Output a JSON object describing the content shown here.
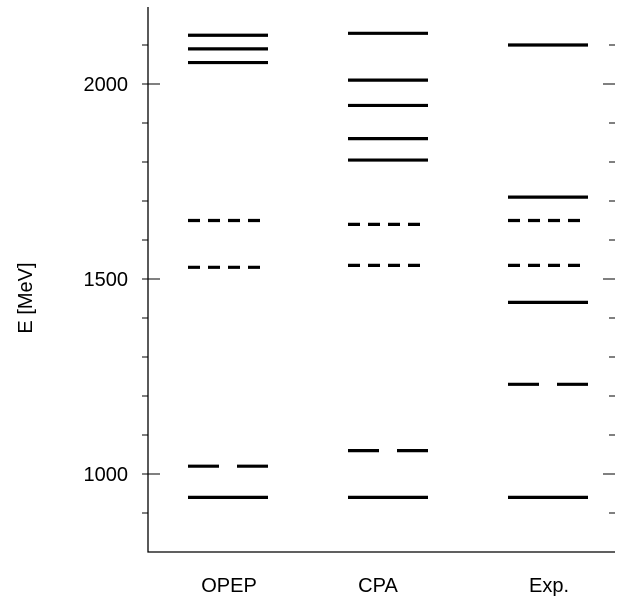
{
  "chart_data": {
    "type": "level-diagram",
    "ylabel": "E   [MeV]",
    "ylim": [
      800,
      2200
    ],
    "y_ticks": [
      1000,
      1500,
      2000
    ],
    "y_tick_labels": [
      "1000",
      "1500",
      "2000"
    ],
    "categories": [
      "OPEP",
      "CPA",
      "Exp."
    ],
    "series": [
      {
        "levels": [
          {
            "value": 2125,
            "style": "solid"
          },
          {
            "value": 2090,
            "style": "solid"
          },
          {
            "value": 2055,
            "style": "solid"
          },
          {
            "value": 1650,
            "style": "dashed"
          },
          {
            "value": 1530,
            "style": "dashed"
          },
          {
            "value": 1020,
            "style": "long-dashed"
          },
          {
            "value": 940,
            "style": "solid"
          }
        ]
      },
      {
        "levels": [
          {
            "value": 2130,
            "style": "solid"
          },
          {
            "value": 2010,
            "style": "solid"
          },
          {
            "value": 1945,
            "style": "solid"
          },
          {
            "value": 1860,
            "style": "solid"
          },
          {
            "value": 1805,
            "style": "solid"
          },
          {
            "value": 1640,
            "style": "dashed"
          },
          {
            "value": 1535,
            "style": "dashed"
          },
          {
            "value": 1060,
            "style": "long-dashed"
          },
          {
            "value": 940,
            "style": "solid"
          }
        ]
      },
      {
        "levels": [
          {
            "value": 2100,
            "style": "solid"
          },
          {
            "value": 1710,
            "style": "solid"
          },
          {
            "value": 1650,
            "style": "dashed"
          },
          {
            "value": 1535,
            "style": "dashed"
          },
          {
            "value": 1440,
            "style": "solid"
          },
          {
            "value": 1230,
            "style": "long-dashed"
          },
          {
            "value": 940,
            "style": "solid"
          }
        ]
      }
    ]
  }
}
